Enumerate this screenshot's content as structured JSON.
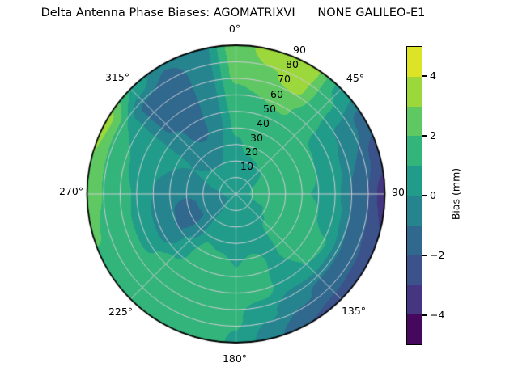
{
  "title": "Delta Antenna Phase Biases: AGOMATRIXVI      NONE GALILEO-E1",
  "colors": {
    "background": "#ffffff",
    "grid": "#cdcdd4",
    "outline": "#000000"
  },
  "chart_data": {
    "type": "heatmap",
    "projection": "polar",
    "title": "Delta Antenna Phase Biases: AGOMATRIXVI      NONE GALILEO-E1",
    "theta_zero": "top",
    "theta_direction": "clockwise",
    "theta_grid_deg": [
      0,
      45,
      90,
      135,
      180,
      225,
      270,
      315
    ],
    "theta_labels": [
      "0°",
      "45°",
      "90",
      "135°",
      "180°",
      "225°",
      "270°",
      "315°"
    ],
    "r_max": 90,
    "r_ticks": [
      10,
      20,
      30,
      40,
      50,
      60,
      70,
      80,
      90
    ],
    "r_tick_labels": [
      "10",
      "20",
      "30",
      "40",
      "50",
      "60",
      "70",
      "80",
      "90"
    ],
    "levels": [
      -5,
      -4,
      -3,
      -2,
      -1,
      0,
      1,
      2,
      3,
      4,
      5
    ],
    "palette": [
      "#46085c",
      "#453681",
      "#3b528b",
      "#30688e",
      "#25848e",
      "#219c8a",
      "#33b47a",
      "#5fc863",
      "#9cd83c",
      "#dde326"
    ],
    "grid_azimuths_deg": [
      0,
      15,
      30,
      45,
      60,
      75,
      90,
      105,
      120,
      135,
      150,
      165,
      180,
      195,
      210,
      225,
      240,
      255,
      270,
      285,
      300,
      315,
      330,
      345
    ],
    "grid_radii": [
      0,
      15,
      30,
      45,
      60,
      75,
      90
    ],
    "values": [
      [
        0.6,
        0.6,
        0.9,
        1.3,
        1.8,
        2.3,
        2.6
      ],
      [
        0.6,
        0.7,
        1.1,
        1.5,
        2.0,
        2.9,
        3.4
      ],
      [
        0.6,
        0.8,
        1.2,
        1.6,
        2.1,
        3.3,
        3.7
      ],
      [
        0.6,
        0.9,
        1.3,
        1.5,
        1.3,
        1.2,
        0.8
      ],
      [
        0.6,
        1.0,
        1.4,
        1.3,
        0.6,
        -0.3,
        -1.5
      ],
      [
        0.6,
        1.2,
        1.5,
        1.2,
        0.4,
        -1.0,
        -2.6
      ],
      [
        0.6,
        1.3,
        1.6,
        1.0,
        0.2,
        -1.6,
        -3.4
      ],
      [
        0.55,
        1.1,
        1.6,
        1.3,
        0.5,
        -1.5,
        -3.0
      ],
      [
        0.5,
        0.9,
        1.6,
        1.6,
        1.1,
        -1.3,
        -2.6
      ],
      [
        0.45,
        0.7,
        1.2,
        1.2,
        1.0,
        -1.2,
        -2.3
      ],
      [
        0.4,
        0.5,
        0.8,
        0.9,
        0.5,
        -0.8,
        -2.0
      ],
      [
        0.35,
        0.45,
        0.8,
        1.2,
        1.4,
        0.2,
        -0.8
      ],
      [
        0.3,
        0.4,
        0.7,
        1.0,
        1.3,
        1.1,
        0.9
      ],
      [
        0.3,
        0.4,
        0.8,
        1.3,
        1.6,
        1.6,
        1.4
      ],
      [
        0.3,
        0.4,
        0.9,
        1.6,
        1.9,
        1.9,
        1.7
      ],
      [
        0.25,
        -0.1,
        -0.3,
        0.4,
        1.4,
        1.8,
        1.8
      ],
      [
        0.2,
        -0.5,
        -1.4,
        -0.9,
        0.8,
        1.7,
        1.8
      ],
      [
        0.25,
        -0.4,
        -1.3,
        -0.8,
        0.8,
        1.7,
        2.1
      ],
      [
        0.3,
        -0.3,
        -0.9,
        -0.4,
        0.9,
        1.8,
        2.4
      ],
      [
        0.4,
        0.0,
        -0.4,
        0.0,
        0.7,
        1.4,
        3.0
      ],
      [
        0.5,
        0.2,
        0.0,
        0.2,
        0.5,
        1.0,
        3.3
      ],
      [
        0.5,
        0.15,
        -0.3,
        -0.8,
        -1.2,
        -1.3,
        1.0
      ],
      [
        0.5,
        0.1,
        -0.6,
        -1.5,
        -1.7,
        -1.6,
        -0.9
      ],
      [
        0.55,
        0.3,
        0.0,
        -0.3,
        -0.4,
        -0.5,
        -0.6
      ]
    ],
    "colorbar": {
      "label": "Bias (mm)",
      "min": -5,
      "max": 5,
      "ticks": [
        4,
        2,
        0,
        -2,
        -4
      ],
      "tick_labels": [
        "4",
        "2",
        "0",
        "−2",
        "−4"
      ]
    }
  }
}
